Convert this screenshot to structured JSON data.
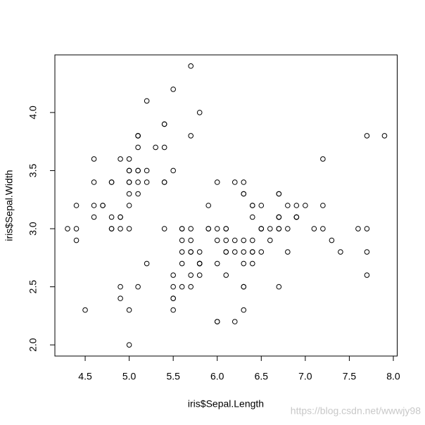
{
  "chart_data": {
    "type": "scatter",
    "x_label": "iris$Sepal.Length",
    "y_label": "iris$Sepal.Width",
    "watermark": "https://blog.csdn.net/wwwjy98",
    "color": "#000000",
    "xlim": [
      4.156,
      8.044
    ],
    "ylim": [
      1.904,
      4.496
    ],
    "xticks": [
      4.5,
      {
        "value": 5,
        "label": "5.0"
      },
      5.5,
      {
        "value": 6,
        "label": "6.0"
      },
      6.5,
      {
        "value": 7,
        "label": "7.0"
      },
      7.5,
      {
        "value": 8,
        "label": "8.0"
      }
    ],
    "yticks": [
      {
        "value": 2,
        "label": "2.0"
      },
      2.5,
      {
        "value": 3,
        "label": "3.0"
      },
      3.5,
      {
        "value": 4,
        "label": "4.0"
      }
    ],
    "x": [
      5.1,
      4.9,
      4.7,
      4.6,
      5.0,
      5.4,
      4.6,
      5.0,
      4.4,
      4.9,
      5.4,
      4.8,
      4.8,
      4.3,
      5.8,
      5.7,
      5.4,
      5.1,
      5.7,
      5.1,
      5.4,
      5.1,
      4.6,
      5.1,
      4.8,
      5.0,
      5.0,
      5.2,
      5.2,
      4.7,
      4.8,
      5.4,
      5.2,
      5.5,
      4.9,
      5.0,
      5.5,
      4.9,
      4.4,
      5.1,
      5.0,
      4.5,
      4.4,
      5.0,
      5.1,
      4.8,
      5.1,
      4.6,
      5.3,
      5.0,
      7.0,
      6.4,
      6.9,
      5.5,
      6.5,
      5.7,
      6.3,
      4.9,
      6.6,
      5.2,
      5.0,
      5.9,
      6.0,
      6.1,
      5.6,
      6.7,
      5.6,
      5.8,
      6.2,
      5.6,
      5.9,
      6.1,
      6.3,
      6.1,
      6.4,
      6.6,
      6.8,
      6.7,
      6.0,
      5.7,
      5.5,
      5.5,
      5.8,
      6.0,
      5.4,
      6.0,
      6.7,
      6.3,
      5.6,
      5.5,
      5.5,
      6.1,
      5.8,
      5.0,
      5.6,
      5.7,
      5.7,
      6.2,
      5.1,
      5.7,
      6.3,
      5.8,
      7.1,
      6.3,
      6.5,
      7.6,
      4.9,
      7.3,
      6.7,
      7.2,
      6.5,
      6.4,
      6.8,
      5.7,
      5.8,
      6.4,
      6.5,
      7.7,
      7.7,
      6.0,
      6.9,
      5.6,
      7.7,
      6.3,
      6.7,
      7.2,
      6.2,
      6.1,
      6.4,
      7.2,
      7.4,
      7.9,
      6.4,
      6.3,
      6.1,
      7.7,
      6.3,
      6.4,
      6.0,
      6.9,
      6.7,
      6.9,
      5.8,
      6.8,
      6.7,
      6.7,
      6.3,
      6.5,
      6.2,
      5.9
    ],
    "values": [
      3.5,
      3.0,
      3.2,
      3.1,
      3.6,
      3.9,
      3.4,
      3.4,
      2.9,
      3.1,
      3.7,
      3.4,
      3.0,
      3.0,
      4.0,
      4.4,
      3.9,
      3.5,
      3.8,
      3.8,
      3.4,
      3.7,
      3.6,
      3.3,
      3.4,
      3.0,
      3.4,
      3.5,
      3.4,
      3.2,
      3.1,
      3.4,
      4.1,
      4.2,
      3.1,
      3.2,
      3.5,
      3.6,
      3.0,
      3.4,
      3.5,
      2.3,
      3.2,
      3.5,
      3.8,
      3.0,
      3.8,
      3.2,
      3.7,
      3.3,
      3.2,
      3.2,
      3.1,
      2.3,
      2.8,
      2.8,
      3.3,
      2.4,
      2.9,
      2.7,
      2.0,
      3.0,
      2.2,
      2.9,
      2.9,
      3.1,
      3.0,
      2.7,
      2.2,
      2.5,
      3.2,
      2.8,
      2.5,
      2.8,
      2.9,
      3.0,
      2.8,
      3.0,
      2.9,
      2.6,
      2.4,
      2.4,
      2.7,
      2.7,
      3.0,
      3.4,
      3.1,
      2.3,
      3.0,
      2.5,
      2.6,
      3.0,
      2.6,
      2.3,
      2.7,
      3.0,
      2.9,
      2.9,
      2.5,
      2.8,
      3.3,
      2.7,
      3.0,
      2.9,
      3.0,
      3.0,
      2.5,
      2.9,
      2.5,
      3.6,
      3.2,
      2.7,
      3.0,
      2.5,
      2.8,
      3.2,
      3.0,
      3.8,
      2.6,
      2.2,
      3.2,
      2.8,
      2.8,
      2.7,
      3.3,
      3.2,
      2.8,
      3.0,
      2.8,
      3.0,
      2.8,
      3.8,
      2.8,
      2.8,
      2.6,
      3.0,
      3.4,
      3.1,
      3.0,
      3.1,
      3.1,
      3.1,
      2.7,
      3.2,
      3.3,
      3.0,
      2.5,
      3.0,
      3.4,
      3.0
    ]
  }
}
